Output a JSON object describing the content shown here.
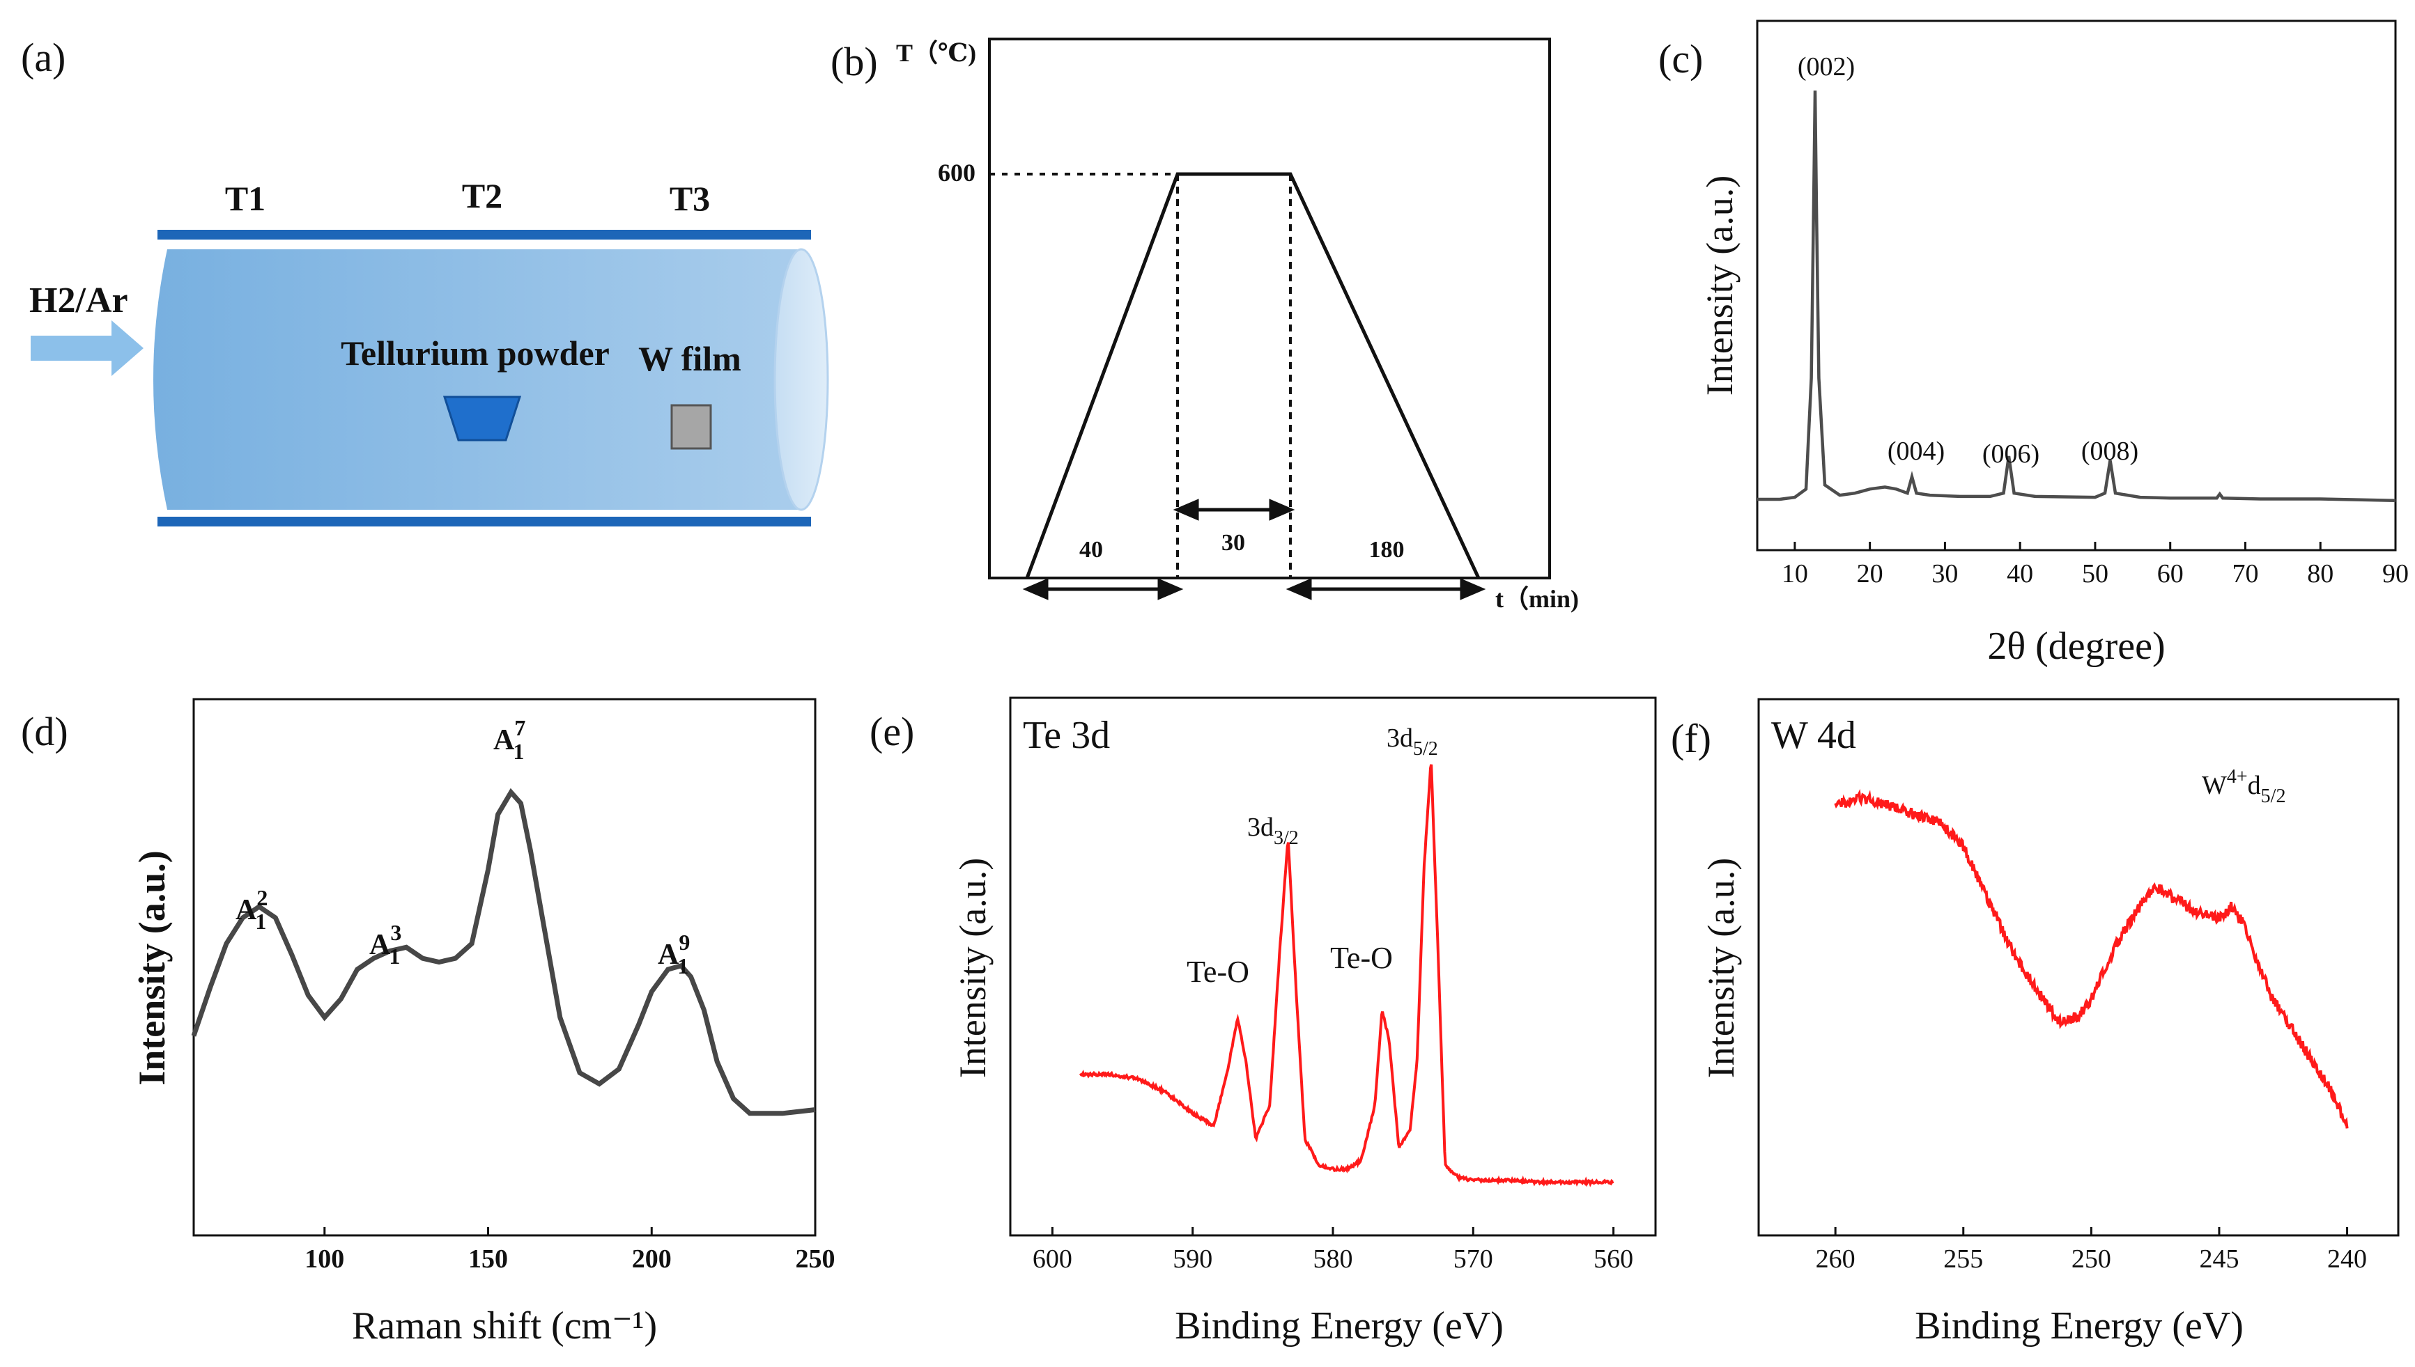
{
  "panels": {
    "a": {
      "label": "(a)",
      "zones": [
        "T1",
        "T2",
        "T3"
      ],
      "gas": "H2/Ar",
      "source": "Tellurium powder",
      "substrate": "W film",
      "colors": {
        "tube": "#8fbfe6",
        "tube_dark": "#6ba6d8",
        "rail": "#1d66b8",
        "boat": "#1f6fcc",
        "film": "#a6a6a6",
        "arrow": "#8cc0ea"
      }
    },
    "b": {
      "label": "(b)",
      "y_axis_label": "T（℃)",
      "x_axis_label": "t（min)",
      "temperature_label": "600",
      "durations": [
        "40",
        "30",
        "180"
      ],
      "temperature_c": 600,
      "durations_min": [
        40,
        30,
        180
      ]
    },
    "c": {
      "label": "(c)",
      "peaks": [
        "(002)",
        "(004)",
        "(006)",
        "(008)"
      ]
    },
    "d": {
      "label": "(d)",
      "modes": [
        {
          "base": "A",
          "sup": "2",
          "sub": "1"
        },
        {
          "base": "A",
          "sup": "3",
          "sub": "1"
        },
        {
          "base": "A",
          "sup": "7",
          "sub": "1"
        },
        {
          "base": "A",
          "sup": "9",
          "sub": "1"
        }
      ]
    },
    "e": {
      "label": "(e)",
      "title": "Te 3d",
      "peaks": [
        {
          "base": "3d",
          "sub": "3/2"
        },
        {
          "base": "3d",
          "sub": "5/2"
        }
      ],
      "te_o": [
        "Te-O",
        "Te-O"
      ]
    },
    "f": {
      "label": "(f)",
      "title": "W 4d",
      "annotation": {
        "base": "W",
        "sup": "4+",
        "mid": "d",
        "sub": "5/2"
      }
    }
  },
  "chart_data": [
    {
      "panel": "c",
      "type": "line",
      "title": "",
      "xlabel": "2θ (degree)",
      "ylabel": "Intensity (a.u.)",
      "xlim": [
        5,
        90
      ],
      "ylim": [
        0,
        100
      ],
      "xticks": [
        10,
        20,
        30,
        40,
        50,
        60,
        70,
        80,
        90
      ],
      "color": "#4d4d4d",
      "peaks": [
        {
          "label": "(002)",
          "x": 12.7,
          "y": 100
        },
        {
          "label": "(004)",
          "x": 25.6,
          "y": 6
        },
        {
          "label": "(006)",
          "x": 38.5,
          "y": 11
        },
        {
          "label": "(008)",
          "x": 52.0,
          "y": 10
        }
      ],
      "x": [
        5,
        8,
        10,
        11.5,
        12.2,
        12.5,
        12.7,
        12.9,
        13.2,
        14,
        16,
        18,
        20,
        22,
        23.5,
        25,
        25.6,
        26.2,
        28,
        32,
        36,
        37.8,
        38.5,
        39.2,
        42,
        46,
        50,
        51.3,
        52.0,
        52.7,
        56,
        60,
        64,
        66.2,
        66.6,
        67,
        72,
        80,
        85,
        90
      ],
      "y": [
        0.5,
        0.5,
        1,
        3,
        30,
        70,
        100,
        70,
        30,
        4,
        1.5,
        2,
        3,
        3.5,
        3,
        2,
        6,
        2,
        1.5,
        1.2,
        1.2,
        2,
        11,
        2,
        1.2,
        1.1,
        1,
        2,
        10,
        2,
        1,
        0.8,
        0.8,
        0.8,
        1.8,
        0.8,
        0.6,
        0.6,
        0.4,
        0.2
      ]
    },
    {
      "panel": "d",
      "type": "line",
      "title": "",
      "xlabel": "Raman shift (cm⁻¹)",
      "ylabel": "Intensity (a.u.)",
      "xlim": [
        60,
        250
      ],
      "ylim": [
        0,
        100
      ],
      "xticks": [
        100,
        150,
        200,
        250
      ],
      "color": "#474747",
      "x": [
        60,
        65,
        70,
        75,
        80,
        85,
        90,
        95,
        100,
        105,
        110,
        115,
        120,
        125,
        130,
        135,
        140,
        145,
        150,
        153,
        157,
        160,
        163,
        167,
        172,
        178,
        184,
        190,
        196,
        200,
        205,
        209,
        212,
        216,
        220,
        225,
        230,
        240,
        250
      ],
      "y": [
        25,
        38,
        50,
        57,
        60,
        57,
        47,
        36,
        30,
        35,
        43,
        46,
        48,
        49,
        46,
        45,
        46,
        50,
        70,
        85,
        91,
        88,
        75,
        55,
        30,
        15,
        12,
        16,
        28,
        37,
        43,
        44,
        41,
        32,
        18,
        8,
        4,
        4,
        5
      ]
    },
    {
      "panel": "e",
      "type": "line",
      "title": "Te 3d",
      "xlabel": "Binding Energy (eV)",
      "ylabel": "Intensity (a.u.)",
      "xlim": [
        603,
        557
      ],
      "ylim": [
        0,
        100
      ],
      "xticks": [
        600,
        590,
        580,
        570,
        560
      ],
      "color": "#ff1a1a",
      "x": [
        598,
        596,
        594,
        592,
        590,
        588.5,
        587.5,
        586.8,
        586.2,
        585.5,
        584.5,
        583.8,
        583.2,
        582.6,
        582,
        581,
        580,
        579,
        578,
        577,
        576.5,
        576,
        575.3,
        574.5,
        574,
        573.5,
        573.0,
        572.5,
        572,
        571,
        570,
        568,
        565,
        562,
        560
      ],
      "y": [
        27,
        27,
        26,
        23,
        18,
        15,
        28,
        40,
        30,
        12,
        20,
        55,
        82,
        45,
        12,
        6,
        5,
        5,
        7,
        20,
        42,
        35,
        10,
        14,
        30,
        75,
        100,
        55,
        6,
        3,
        2.5,
        2.5,
        2,
        2,
        2
      ]
    },
    {
      "panel": "f",
      "type": "line",
      "title": "W 4d",
      "xlabel": "Binding Energy (eV)",
      "ylabel": "Intensity (a.u.)",
      "xlim": [
        263,
        238
      ],
      "ylim": [
        0,
        100
      ],
      "xticks": [
        260,
        255,
        250,
        245,
        240
      ],
      "color": "#ff1a1a",
      "x": [
        260,
        259,
        258,
        257,
        256,
        255,
        254,
        253,
        252,
        251.2,
        250.5,
        250,
        249,
        248,
        247.5,
        247,
        246.5,
        246,
        245,
        244.5,
        244,
        243,
        242,
        241,
        240.5,
        240
      ],
      "y": [
        92,
        94,
        92,
        90,
        88,
        82,
        68,
        55,
        45,
        38,
        40,
        44,
        58,
        68,
        72,
        70,
        68,
        66,
        64,
        67,
        62,
        45,
        35,
        25,
        20,
        12
      ]
    }
  ],
  "schedule_chart": {
    "panel": "b",
    "type": "line",
    "title": "",
    "xlabel": "t（min)",
    "ylabel": "T（℃)",
    "x": [
      0,
      40,
      70,
      250
    ],
    "y": [
      0,
      600,
      600,
      0
    ]
  }
}
